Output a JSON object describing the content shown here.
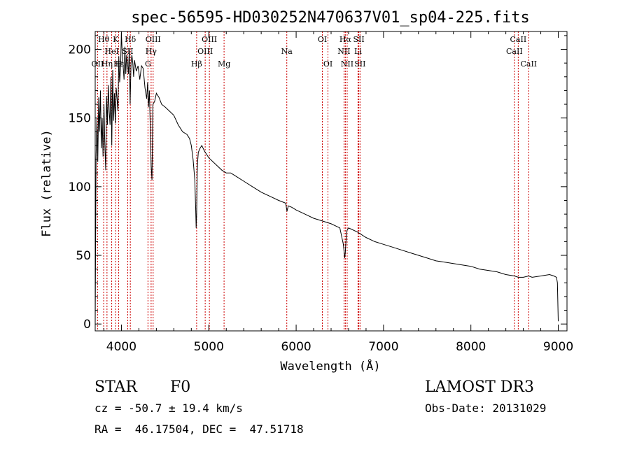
{
  "chart_data": {
    "type": "line",
    "title": "spec-56595-HD030252N470637V01_sp04-225.fits",
    "xlabel": "Wavelength (Å)",
    "ylabel": "Flux (relative)",
    "xlim": [
      3700,
      9100
    ],
    "ylim": [
      -5,
      213
    ],
    "xticks": [
      {
        "value": 4000,
        "label": "4000"
      },
      {
        "value": 5000,
        "label": "5000"
      },
      {
        "value": 6000,
        "label": "6000"
      },
      {
        "value": 7000,
        "label": "7000"
      },
      {
        "value": 8000,
        "label": "8000"
      },
      {
        "value": 9000,
        "label": "9000"
      }
    ],
    "yticks": [
      {
        "value": 0,
        "label": "0"
      },
      {
        "value": 50,
        "label": "50"
      },
      {
        "value": 100,
        "label": "100"
      },
      {
        "value": 150,
        "label": "150"
      },
      {
        "value": 200,
        "label": "200"
      }
    ],
    "series": [
      {
        "name": "spectrum",
        "color": "#000000",
        "x": [
          3700,
          3710,
          3720,
          3730,
          3740,
          3750,
          3760,
          3770,
          3780,
          3790,
          3800,
          3810,
          3820,
          3830,
          3840,
          3850,
          3860,
          3870,
          3880,
          3890,
          3900,
          3910,
          3920,
          3930,
          3940,
          3950,
          3960,
          3970,
          3980,
          3990,
          4000,
          4010,
          4020,
          4030,
          4040,
          4050,
          4060,
          4070,
          4080,
          4090,
          4100,
          4110,
          4120,
          4130,
          4140,
          4150,
          4170,
          4190,
          4210,
          4230,
          4250,
          4270,
          4290,
          4300,
          4310,
          4320,
          4330,
          4340,
          4350,
          4360,
          4380,
          4400,
          4430,
          4460,
          4500,
          4550,
          4600,
          4650,
          4700,
          4750,
          4780,
          4800,
          4820,
          4840,
          4850,
          4855,
          4861,
          4867,
          4872,
          4880,
          4900,
          4920,
          4950,
          5000,
          5050,
          5100,
          5150,
          5200,
          5250,
          5300,
          5400,
          5500,
          5600,
          5700,
          5800,
          5880,
          5895,
          5910,
          5950,
          6000,
          6100,
          6200,
          6300,
          6400,
          6500,
          6540,
          6556,
          6563,
          6570,
          6580,
          6600,
          6700,
          6800,
          6900,
          7000,
          7100,
          7200,
          7300,
          7400,
          7500,
          7600,
          7700,
          7800,
          7900,
          8000,
          8100,
          8200,
          8300,
          8400,
          8498,
          8542,
          8600,
          8662,
          8700,
          8800,
          8900,
          8950,
          8980,
          8990,
          9000
        ],
        "y": [
          0,
          120,
          150,
          118,
          165,
          140,
          170,
          128,
          150,
          122,
          160,
          132,
          112,
          166,
          145,
          174,
          155,
          145,
          180,
          130,
          185,
          148,
          168,
          146,
          172,
          164,
          155,
          195,
          176,
          185,
          212,
          196,
          188,
          178,
          202,
          182,
          196,
          190,
          182,
          200,
          160,
          190,
          196,
          190,
          180,
          192,
          184,
          188,
          178,
          188,
          186,
          172,
          164,
          176,
          158,
          170,
          145,
          115,
          105,
          160,
          162,
          168,
          165,
          160,
          158,
          155,
          152,
          145,
          140,
          138,
          135,
          130,
          120,
          105,
          85,
          70,
          80,
          110,
          118,
          125,
          128,
          130,
          126,
          121,
          118,
          115,
          112,
          110,
          110,
          108,
          104,
          100,
          96,
          93,
          90,
          88,
          82,
          86,
          85,
          83,
          80,
          77,
          75,
          73,
          70,
          58,
          48,
          52,
          60,
          68,
          70,
          67,
          63,
          60,
          58,
          56,
          54,
          52,
          50,
          48,
          46,
          45,
          44,
          43,
          42,
          40,
          39,
          38,
          36,
          35,
          34,
          34,
          35,
          34,
          35,
          36,
          35,
          34,
          30,
          2
        ]
      }
    ],
    "annotations": [
      {
        "label": "Hθ",
        "x": 3797,
        "row": 0
      },
      {
        "label": "OII",
        "x": 3727,
        "row": 2
      },
      {
        "label": "Hη",
        "x": 3835,
        "row": 2
      },
      {
        "label": "HeI",
        "x": 3889,
        "row": 1
      },
      {
        "label": "K",
        "x": 3934,
        "row": 0
      },
      {
        "label": "H",
        "x": 3969,
        "row": 2
      },
      {
        "label": "Hδ",
        "x": 4102,
        "row": 0
      },
      {
        "label": "SII",
        "x": 4072,
        "row": 1
      },
      {
        "label": "Hε",
        "x": 3970,
        "row": 2
      },
      {
        "label": "OIII",
        "x": 4363,
        "row": 0
      },
      {
        "label": "Hγ",
        "x": 4340,
        "row": 1
      },
      {
        "label": "G",
        "x": 4304,
        "row": 2
      },
      {
        "label": "OIII",
        "x": 5007,
        "row": 0
      },
      {
        "label": "OIII",
        "x": 4959,
        "row": 1
      },
      {
        "label": "Hβ",
        "x": 4861,
        "row": 2
      },
      {
        "label": "Mg",
        "x": 5175,
        "row": 2
      },
      {
        "label": "Na",
        "x": 5893,
        "row": 1
      },
      {
        "label": "OI",
        "x": 6300,
        "row": 0
      },
      {
        "label": "OI",
        "x": 6364,
        "row": 2
      },
      {
        "label": "Hα",
        "x": 6563,
        "row": 0
      },
      {
        "label": "NII",
        "x": 6548,
        "row": 1
      },
      {
        "label": "NII",
        "x": 6584,
        "row": 2
      },
      {
        "label": "SII",
        "x": 6717,
        "row": 0
      },
      {
        "label": "Li",
        "x": 6708,
        "row": 1
      },
      {
        "label": "SII",
        "x": 6731,
        "row": 2
      },
      {
        "label": "CaII",
        "x": 8542,
        "row": 0
      },
      {
        "label": "CaII",
        "x": 8498,
        "row": 1
      },
      {
        "label": "CaII",
        "x": 8662,
        "row": 2
      }
    ],
    "line_markers": [
      3727,
      3797,
      3835,
      3889,
      3934,
      3969,
      4072,
      4102,
      4304,
      4340,
      4363,
      4861,
      4959,
      5007,
      5175,
      5893,
      6300,
      6364,
      6548,
      6563,
      6584,
      6708,
      6717,
      6731,
      8498,
      8542,
      8662
    ],
    "marker_color": "#cc0000"
  },
  "info": {
    "object_type": "STAR",
    "subclass": "F0",
    "survey": "LAMOST DR3",
    "cz": "cz = -50.7 ± 19.4 km/s",
    "obs_date": "Obs-Date: 20131029",
    "radec": "RA =  46.17504, DEC =  47.51718"
  }
}
